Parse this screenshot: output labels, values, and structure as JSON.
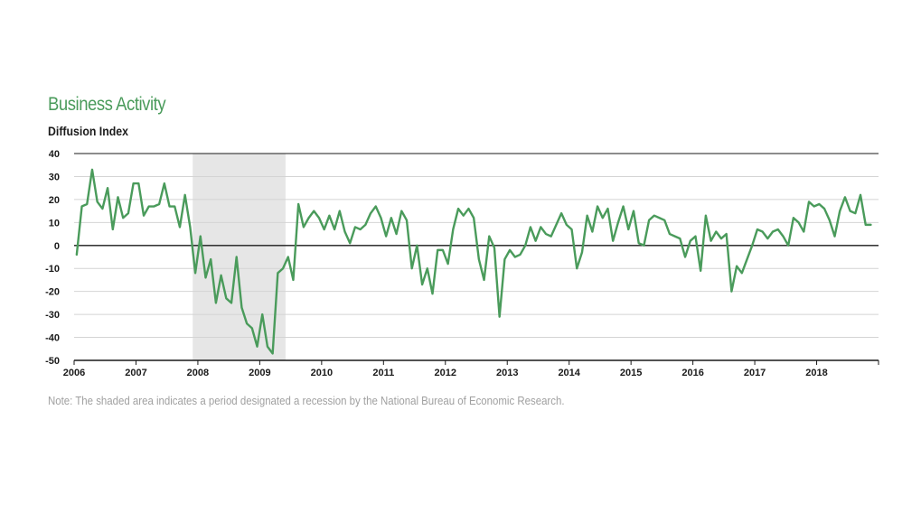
{
  "chart_data": {
    "type": "line",
    "title": "Business Activity",
    "ylabel": "Diffusion Index",
    "note": "Note: The shaded area indicates a period designated a recession by the National Bureau of Economic Research.",
    "ylim": [
      -50,
      40
    ],
    "y_ticks": [
      40,
      30,
      20,
      10,
      0,
      -10,
      -20,
      -30,
      -40,
      -50
    ],
    "x_range": [
      "2006-01",
      "2018-12"
    ],
    "x_tick_labels": [
      "2006",
      "2007",
      "2008",
      "2009",
      "2010",
      "2011",
      "2012",
      "2013",
      "2014",
      "2015",
      "2016",
      "2017",
      "2018"
    ],
    "recession": {
      "start": "2007-12",
      "end": "2009-06"
    },
    "grid": true,
    "line_color": "#4a9b5b",
    "recession_color": "#e6e6e6",
    "series": [
      {
        "start": "2006-01",
        "frequency": "monthly",
        "values": [
          -4,
          17,
          18,
          33,
          19,
          16,
          25,
          7,
          21,
          12,
          14,
          27,
          27,
          13,
          17,
          17,
          18,
          27,
          17,
          17,
          8,
          22,
          8,
          -12,
          4,
          -14,
          -6,
          -25,
          -13,
          -23,
          -25,
          -5,
          -27,
          -34,
          -36,
          -44,
          -30,
          -44,
          -47,
          -12,
          -10,
          -5,
          -15,
          18,
          8,
          12,
          15,
          12,
          7,
          13,
          7,
          15,
          6,
          1,
          8,
          7,
          9,
          14,
          17,
          12,
          4,
          12,
          5,
          15,
          11,
          -10,
          0,
          -17,
          -10,
          -21,
          -2,
          -2,
          -8,
          7,
          16,
          13,
          16,
          12,
          -6,
          -15,
          4,
          -1,
          -31,
          -6,
          -2,
          -5,
          -4,
          0,
          8,
          2,
          8,
          5,
          4,
          9,
          14,
          9,
          7,
          -10,
          -3,
          13,
          6,
          17,
          12,
          16,
          2,
          10,
          17,
          7,
          15,
          1,
          0,
          11,
          13,
          12,
          11,
          5,
          4,
          3,
          -5,
          2,
          4,
          -11,
          13,
          2,
          6,
          3,
          5,
          -20,
          -9,
          -12,
          -6,
          0,
          7,
          6,
          3,
          6,
          7,
          4,
          0,
          12,
          10,
          6,
          19,
          17,
          18,
          16,
          11,
          4,
          15,
          21,
          15,
          14,
          22,
          9,
          9
        ]
      }
    ]
  }
}
